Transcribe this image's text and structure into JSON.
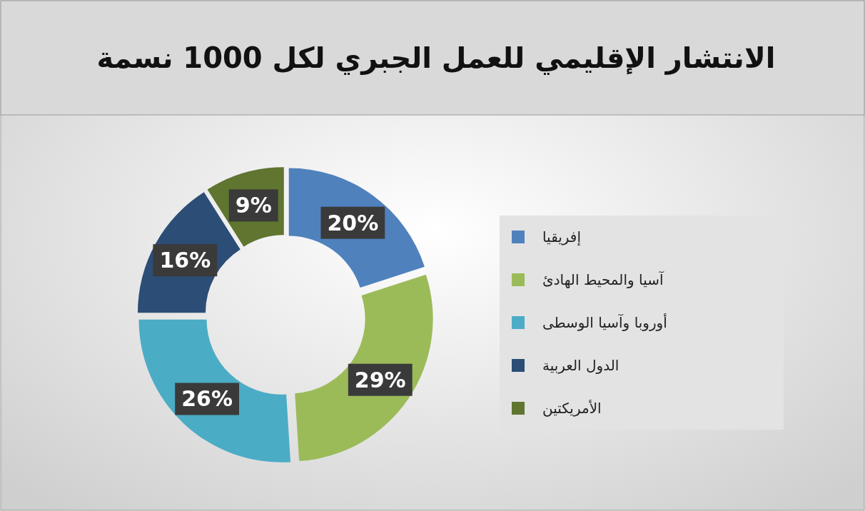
{
  "chart_data": {
    "type": "donut",
    "title": "الانتشار الإقليمي للعمل الجبري لكل 1000 نسمة",
    "categories": [
      "إفريقيا",
      "آسيا والمحيط الهادئ",
      "أوروبا وآسيا الوسطى",
      "الدول العربية",
      "الأمريكتين"
    ],
    "values": [
      20,
      29,
      26,
      16,
      9
    ],
    "colors": [
      "#4f81bd",
      "#9bbb59",
      "#4bacc6",
      "#2c4d75",
      "#5f7530"
    ],
    "value_labels": [
      "20%",
      "29%",
      "26%",
      "16%",
      "9%"
    ],
    "legend": "right"
  }
}
